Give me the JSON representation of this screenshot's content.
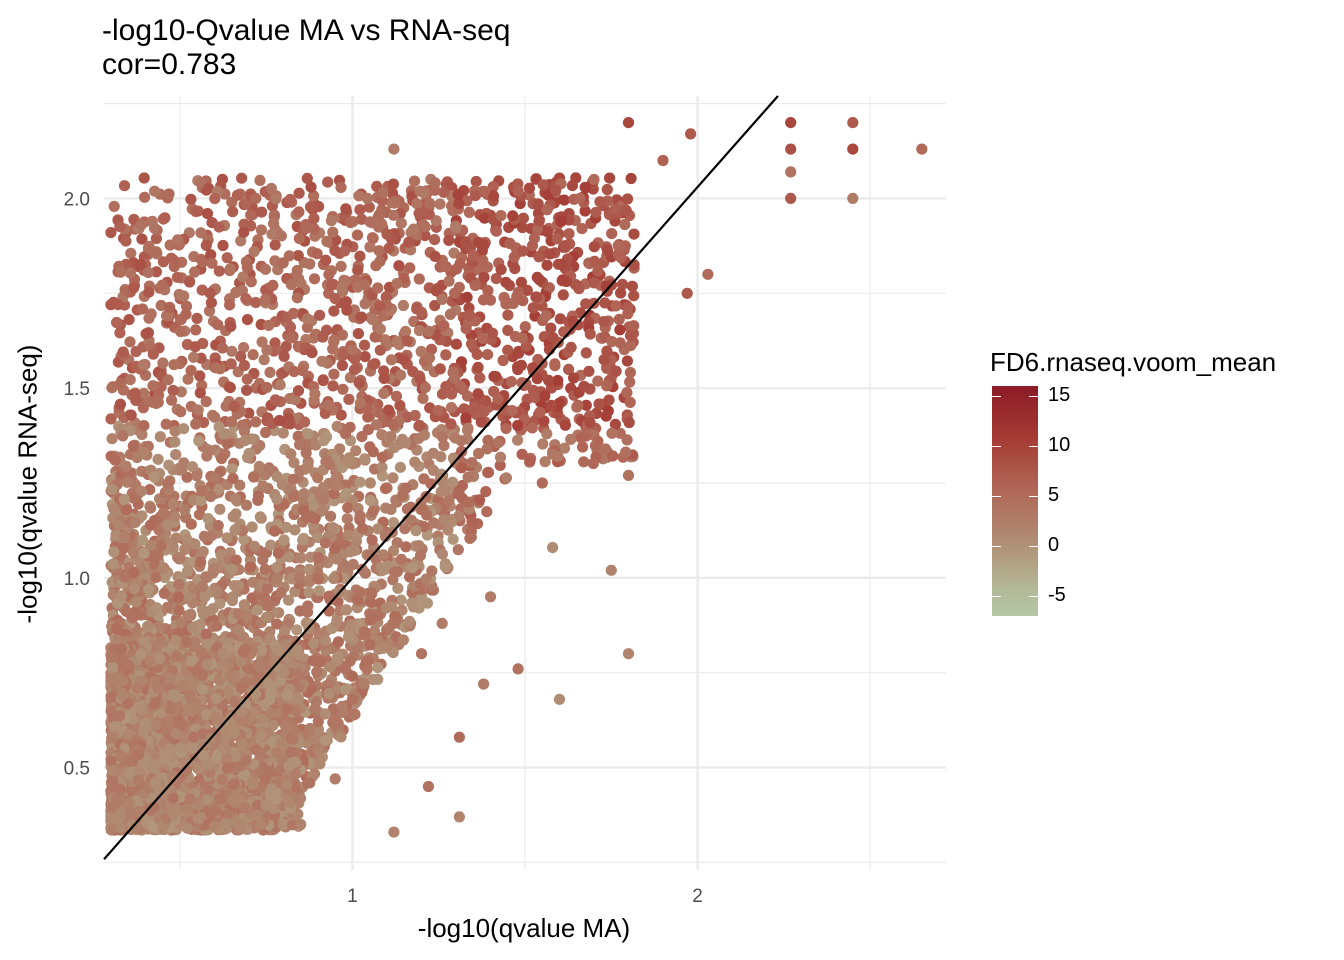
{
  "chart_data": {
    "type": "scatter",
    "title": "-log10-Qvalue MA vs RNA-seq",
    "subtitle": "cor=0.783",
    "xlabel": "-log10(qvalue MA)",
    "ylabel": "-log10(qvalue RNA-seq)",
    "xlim": [
      0.28,
      2.72
    ],
    "ylim": [
      0.23,
      2.27
    ],
    "x_ticks": [
      1,
      2
    ],
    "y_ticks": [
      0.5,
      1.0,
      1.5,
      2.0
    ],
    "x_tick_labels": [
      "1",
      "2"
    ],
    "y_tick_labels": [
      "0.5",
      "1.0",
      "1.5",
      "2.0"
    ],
    "grid": true,
    "trend_line": {
      "slope": 1.03,
      "intercept": -0.03
    },
    "color_scale": {
      "name": "FD6.rnaseq.voom_mean",
      "range": [
        -7,
        16
      ],
      "breaks": [
        "15",
        "10",
        "5",
        "0",
        "-5"
      ],
      "colors": [
        "#8c1b25",
        "#a43a33",
        "#b06455",
        "#b08a72",
        "#b3b896",
        "#b3c8a6"
      ]
    },
    "legend_position": "right",
    "points": [
      [
        1.8,
        2.2,
        10
      ],
      [
        1.98,
        2.17,
        8
      ],
      [
        2.27,
        2.2,
        10
      ],
      [
        2.45,
        2.2,
        8
      ],
      [
        2.27,
        2.13,
        9
      ],
      [
        2.45,
        2.13,
        10
      ],
      [
        2.65,
        2.13,
        6
      ],
      [
        1.12,
        2.13,
        4
      ],
      [
        2.27,
        2.07,
        5
      ],
      [
        2.27,
        2.0,
        8
      ],
      [
        2.45,
        2.0,
        4
      ],
      [
        1.48,
        2.02,
        7
      ],
      [
        1.7,
        2.05,
        6
      ],
      [
        1.9,
        2.1,
        7
      ],
      [
        2.03,
        1.8,
        6
      ],
      [
        1.97,
        1.75,
        8
      ],
      [
        0.3,
        1.91,
        8
      ],
      [
        0.3,
        1.72,
        8
      ],
      [
        0.58,
        1.96,
        9
      ],
      [
        0.72,
        2.0,
        6
      ],
      [
        0.88,
        2.03,
        9
      ],
      [
        1.0,
        1.6,
        5
      ],
      [
        1.2,
        1.7,
        7
      ],
      [
        1.35,
        1.85,
        7
      ],
      [
        1.8,
        1.27,
        5
      ],
      [
        1.75,
        1.02,
        3
      ],
      [
        1.6,
        0.68,
        2
      ],
      [
        1.58,
        1.08,
        2
      ],
      [
        1.8,
        0.8,
        3
      ],
      [
        1.38,
        0.72,
        4
      ],
      [
        1.12,
        0.33,
        3
      ],
      [
        1.31,
        0.37,
        3
      ],
      [
        1.22,
        0.45,
        5
      ],
      [
        1.31,
        0.58,
        6
      ],
      [
        1.48,
        0.76,
        5
      ],
      [
        1.2,
        0.8,
        5
      ],
      [
        1.4,
        0.95,
        4
      ],
      [
        1.55,
        1.25,
        6
      ],
      [
        1.65,
        1.45,
        6
      ],
      [
        1.45,
        1.6,
        8
      ],
      [
        1.26,
        0.88,
        4
      ],
      [
        1.0,
        0.68,
        5
      ],
      [
        0.95,
        0.47,
        4
      ],
      [
        0.85,
        0.35,
        3
      ],
      [
        0.75,
        0.4,
        2
      ]
    ]
  }
}
